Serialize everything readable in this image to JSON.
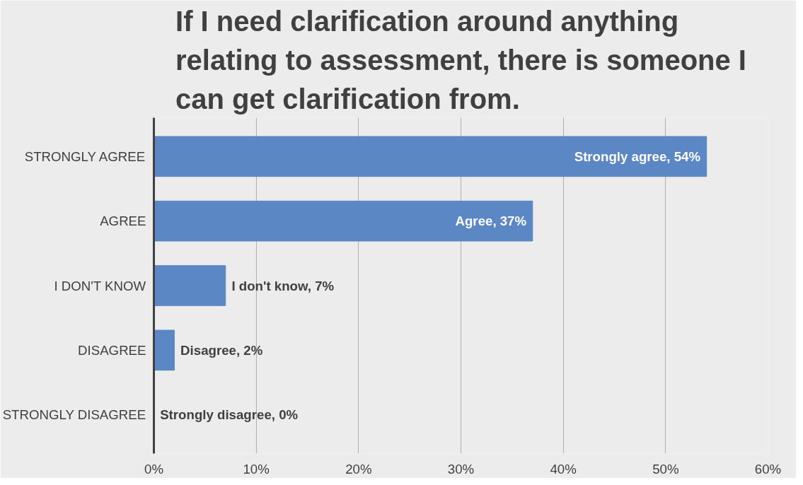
{
  "chart_data": {
    "type": "bar",
    "orientation": "horizontal",
    "title": "If I need clarification around anything relating to assessment, there is someone I can get clarification from.",
    "categories": [
      "STRONGLY AGREE",
      "AGREE",
      "I DON'T KNOW",
      "DISAGREE",
      "STRONGLY DISAGREE"
    ],
    "values": [
      54,
      37,
      7,
      2,
      0
    ],
    "value_labels": [
      "Strongly agree, 54%",
      "Agree, 37%",
      "I don't know, 7%",
      "Disagree, 2%",
      "Strongly disagree, 0%"
    ],
    "color": "#5b87c5",
    "xlim": [
      0,
      60
    ],
    "xticks": [
      {
        "value": 0,
        "label": "0%"
      },
      {
        "value": 10,
        "label": "10%"
      },
      {
        "value": 20,
        "label": "20%"
      },
      {
        "value": 30,
        "label": "30%"
      },
      {
        "value": 40,
        "label": "40%"
      },
      {
        "value": 50,
        "label": "50%"
      },
      {
        "value": 60,
        "label": "60%"
      }
    ],
    "grid": "x"
  }
}
